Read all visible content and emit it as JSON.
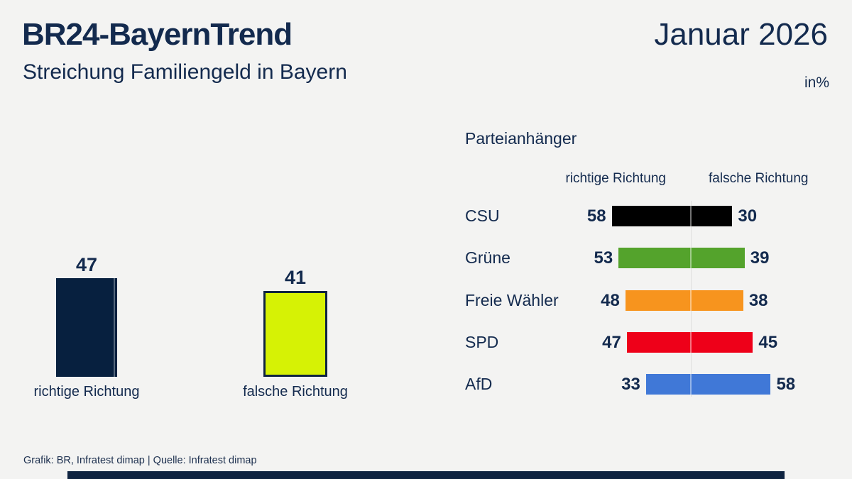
{
  "header": {
    "title": "BR24-BayernTrend",
    "subtitle": "Streichung Familiengeld in Bayern",
    "date": "Januar 2026",
    "unit": "in%"
  },
  "party_section": {
    "title": "Parteianhänger",
    "column_left": "richtige Richtung",
    "column_right": "falsche Richtung"
  },
  "footer": {
    "credit": "Grafik: BR, Infratest dimap | Quelle: Infratest dimap"
  },
  "colors": {
    "background": "#f3f3f2",
    "text_navy": "#132a4e",
    "bar_navy": "#07203f",
    "lime": "#d6f205",
    "lime_border": "#0f2441",
    "bottom_bar": "#0f2441",
    "gridline": "#dedede"
  },
  "chart_data": [
    {
      "type": "bar",
      "title": "Streichung Familiengeld in Bayern",
      "unit": "in%",
      "categories": [
        "richtige Richtung",
        "falsche Richtung"
      ],
      "values": [
        47,
        41
      ],
      "bar_colors": [
        "#07203f",
        "#d6f205"
      ],
      "bar_borders": [
        null,
        "#0f2441"
      ],
      "data_labels": true,
      "axes": "none",
      "legend": "none"
    },
    {
      "type": "bar",
      "subtype": "diverging_horizontal",
      "title": "Parteianhänger",
      "unit": "in%",
      "categories": [
        "CSU",
        "Grüne",
        "Freie Wähler",
        "SPD",
        "AfD"
      ],
      "series": [
        {
          "name": "richtige Richtung",
          "values": [
            58,
            53,
            48,
            47,
            33
          ]
        },
        {
          "name": "falsche Richtung",
          "values": [
            30,
            39,
            38,
            45,
            58
          ]
        }
      ],
      "bar_colors": [
        "#000000",
        "#54a32c",
        "#f7941e",
        "#ee0019",
        "#4078d7"
      ],
      "data_labels": true,
      "axes": "none",
      "legend": "column_headers"
    }
  ]
}
